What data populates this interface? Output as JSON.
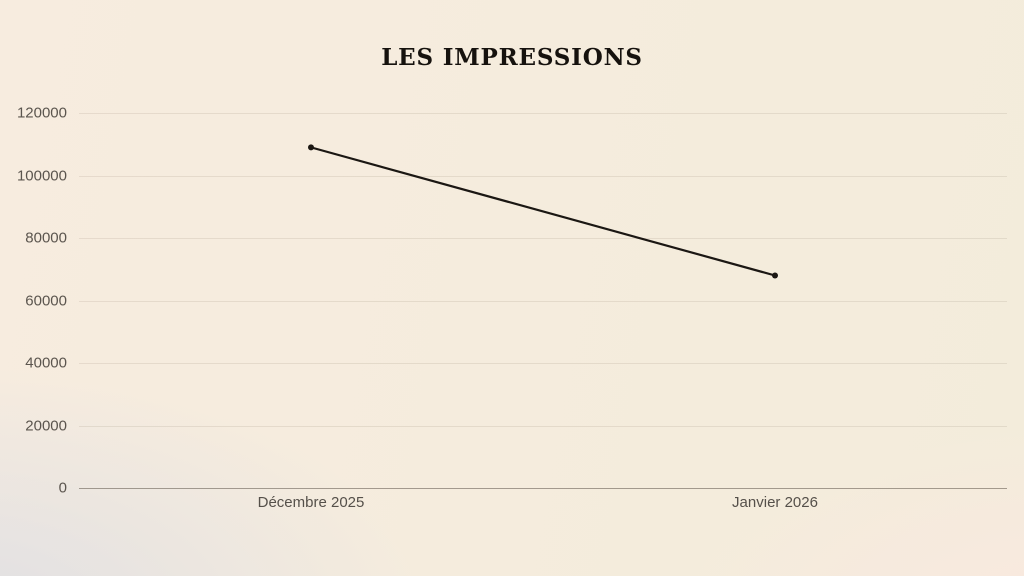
{
  "chart_data": {
    "type": "line",
    "title": "LES IMPRESSIONS",
    "categories": [
      "Décembre 2025",
      "Janvier 2026"
    ],
    "series": [
      {
        "name": "impressions",
        "values": [
          109000,
          68000
        ]
      }
    ],
    "xlabel": "",
    "ylabel": "",
    "ylim": [
      0,
      120000
    ],
    "yticks": [
      0,
      20000,
      40000,
      60000,
      80000,
      100000,
      120000
    ],
    "grid": true,
    "legend": false,
    "colors": {
      "line": "#1b1713",
      "point": "#1b1713",
      "tick_label": "#5b554e",
      "title": "#16120e",
      "background_cream": "#f4ecdc",
      "background_gray_corner": "#dfdfe3",
      "background_pink_corner": "#fae8e0"
    }
  }
}
